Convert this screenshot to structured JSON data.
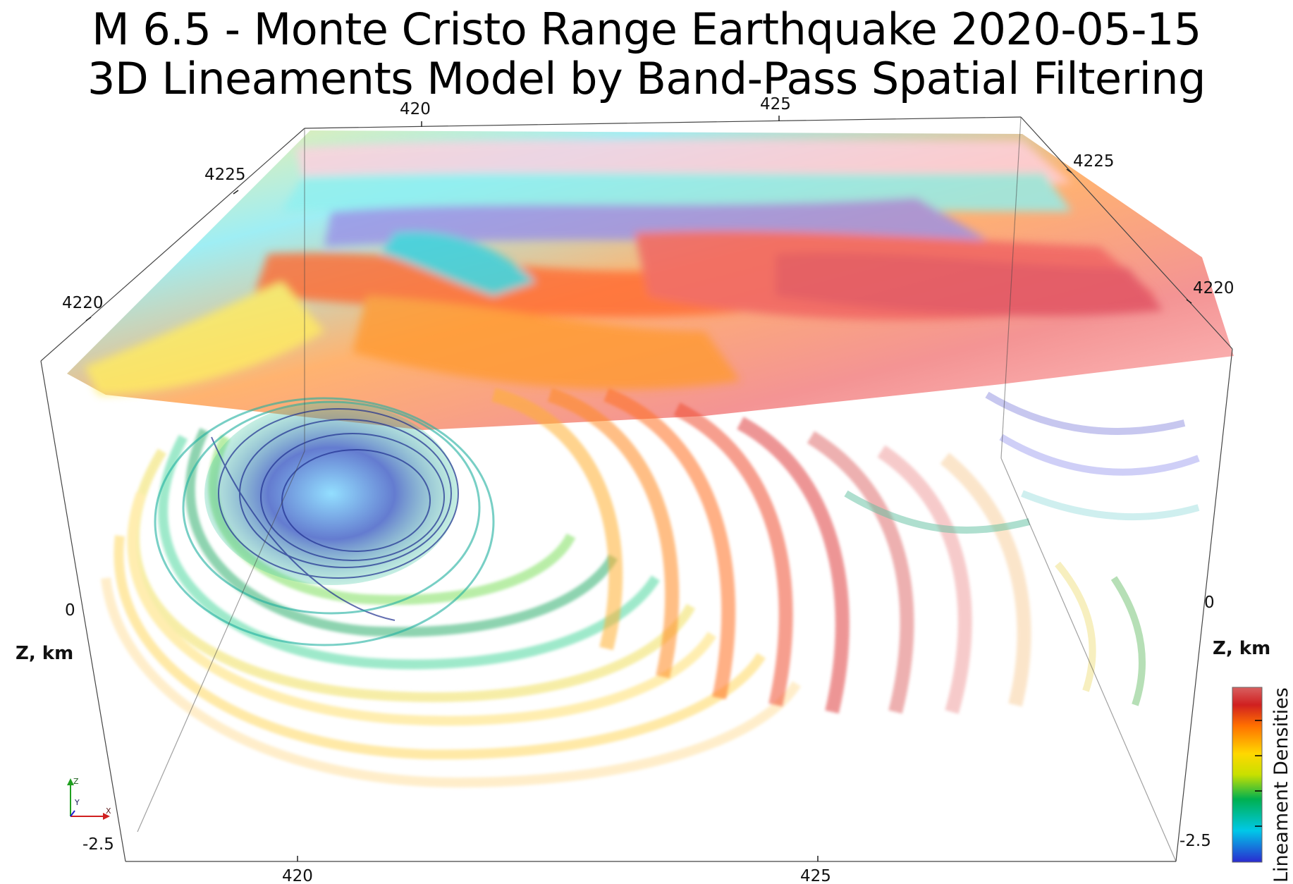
{
  "title_line1": "M 6.5 - Monte Cristo Range Earthquake 2020-05-15",
  "title_line2": "3D Lineaments Model by Band-Pass Spatial Filtering",
  "axes": {
    "top_x_ticks": [
      "420",
      "425"
    ],
    "bottom_x_ticks": [
      "420",
      "425"
    ],
    "left_y_ticks": [
      "4225",
      "4220"
    ],
    "right_y_ticks": [
      "4225",
      "4220"
    ],
    "left_z_ticks": [
      "0",
      "-2.5"
    ],
    "right_z_ticks": [
      "0",
      "-2.5"
    ],
    "z_label_left": "Z, km",
    "z_label_right": "Z, km"
  },
  "colorbar": {
    "label": "Lineament Densities",
    "colormap": [
      "#3b3bd0",
      "#00c8e0",
      "#00b050",
      "#d0e000",
      "#ffd000",
      "#ff7a00",
      "#e03020",
      "#c03030"
    ]
  },
  "orientation_triad": {
    "z": "Z",
    "y": "Y",
    "x": "X"
  }
}
